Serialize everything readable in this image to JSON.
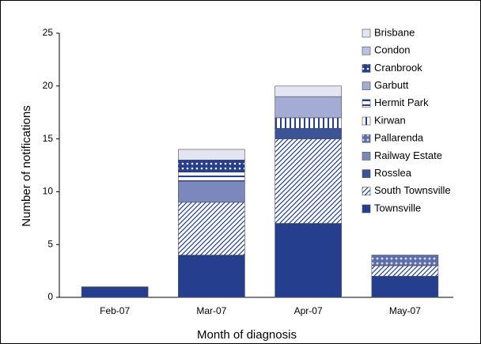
{
  "chart_data": {
    "type": "stacked_bar",
    "x_label": "Month of diagnosis",
    "y_label": "Number of notifications",
    "categories": [
      "Feb-07",
      "Mar-07",
      "Apr-07",
      "May-07"
    ],
    "ylim": [
      0,
      25
    ],
    "yticks": [
      0,
      5,
      10,
      15,
      20,
      25
    ],
    "legend": "top-right",
    "series": [
      {
        "name": "Townsville",
        "color": "#253f8e",
        "pattern": "solid",
        "values": [
          1,
          4,
          7,
          2
        ]
      },
      {
        "name": "South Townsville",
        "color": "#253f8e",
        "pattern": "diagonal",
        "values": [
          0,
          5,
          8,
          1
        ]
      },
      {
        "name": "Rosslea",
        "color": "#3b5397",
        "pattern": "solid",
        "values": [
          0,
          0,
          1,
          0
        ]
      },
      {
        "name": "Railway Estate",
        "color": "#7b87bd",
        "pattern": "solid",
        "values": [
          0,
          2,
          0,
          0
        ]
      },
      {
        "name": "Pallarenda",
        "color": "#5d6eab",
        "pattern": "cross",
        "values": [
          0,
          0,
          0,
          1
        ]
      },
      {
        "name": "Kirwan",
        "color": "#253f8e",
        "pattern": "vertical",
        "values": [
          0,
          0,
          1,
          0
        ]
      },
      {
        "name": "Hermit Park",
        "color": "#253f8e",
        "pattern": "horizontal",
        "values": [
          0,
          1,
          0,
          0
        ]
      },
      {
        "name": "Garbutt",
        "color": "#a4abd4",
        "pattern": "solid",
        "values": [
          0,
          0,
          2,
          0
        ]
      },
      {
        "name": "Cranbrook",
        "color": "#253f8e",
        "pattern": "dots",
        "values": [
          0,
          1,
          0,
          0
        ]
      },
      {
        "name": "Condon",
        "color": "#bcc3e0",
        "pattern": "solid",
        "values": [
          0,
          0,
          0,
          0
        ]
      },
      {
        "name": "Brisbane",
        "color": "#e3e6f2",
        "pattern": "solid",
        "values": [
          0,
          1,
          1,
          0
        ]
      }
    ]
  }
}
